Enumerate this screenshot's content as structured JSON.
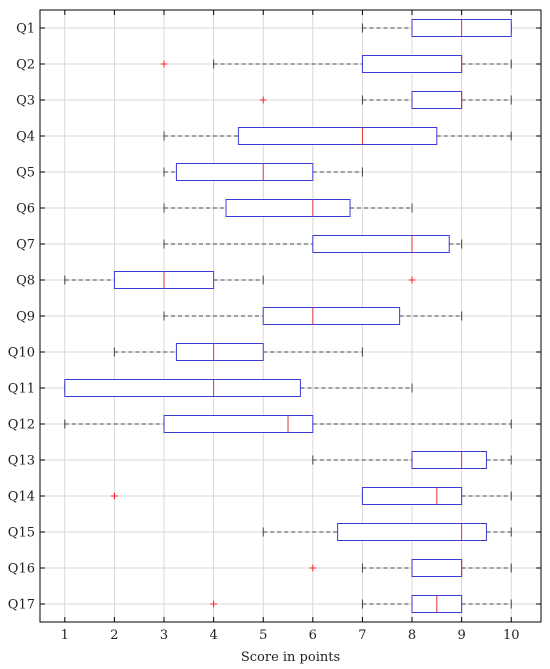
{
  "chart_data": {
    "type": "boxplot",
    "orientation": "horizontal",
    "xlabel": "Score in points",
    "ylabel": "",
    "xlim": [
      0.5,
      10.6
    ],
    "xticks": [
      1,
      2,
      3,
      4,
      5,
      6,
      7,
      8,
      9,
      10
    ],
    "grid": true,
    "colors": {
      "box": "#3b3bd6",
      "median": "#e03030",
      "whisker": "#444444",
      "outlier": "#ff2020",
      "grid": "#d9d9d9"
    },
    "categories": [
      "Q1",
      "Q2",
      "Q3",
      "Q4",
      "Q5",
      "Q6",
      "Q7",
      "Q8",
      "Q9",
      "Q10",
      "Q11",
      "Q12",
      "Q13",
      "Q14",
      "Q15",
      "Q16",
      "Q17"
    ],
    "boxes": [
      {
        "label": "Q1",
        "whislo": 7,
        "q1": 8,
        "med": 9,
        "q3": 10,
        "whishi": 10,
        "fliers": []
      },
      {
        "label": "Q2",
        "whislo": 4,
        "q1": 7,
        "med": 9,
        "q3": 9,
        "whishi": 10,
        "fliers": [
          3
        ]
      },
      {
        "label": "Q3",
        "whislo": 7,
        "q1": 8,
        "med": 9,
        "q3": 9,
        "whishi": 10,
        "fliers": [
          5
        ]
      },
      {
        "label": "Q4",
        "whislo": 3,
        "q1": 4.5,
        "med": 7,
        "q3": 8.5,
        "whishi": 10,
        "fliers": []
      },
      {
        "label": "Q5",
        "whislo": 3,
        "q1": 3.25,
        "med": 5,
        "q3": 6,
        "whishi": 7,
        "fliers": []
      },
      {
        "label": "Q6",
        "whislo": 3,
        "q1": 4.25,
        "med": 6,
        "q3": 6.75,
        "whishi": 8,
        "fliers": []
      },
      {
        "label": "Q7",
        "whislo": 3,
        "q1": 6,
        "med": 8,
        "q3": 8.75,
        "whishi": 9,
        "fliers": []
      },
      {
        "label": "Q8",
        "whislo": 1,
        "q1": 2,
        "med": 3,
        "q3": 4,
        "whishi": 5,
        "fliers": [
          8
        ]
      },
      {
        "label": "Q9",
        "whislo": 3,
        "q1": 5,
        "med": 6,
        "q3": 7.75,
        "whishi": 9,
        "fliers": []
      },
      {
        "label": "Q10",
        "whislo": 2,
        "q1": 3.25,
        "med": 4,
        "q3": 5,
        "whishi": 7,
        "fliers": []
      },
      {
        "label": "Q11",
        "whislo": 1,
        "q1": 1,
        "med": 4,
        "q3": 5.75,
        "whishi": 8,
        "fliers": []
      },
      {
        "label": "Q12",
        "whislo": 1,
        "q1": 3,
        "med": 5.5,
        "q3": 6,
        "whishi": 10,
        "fliers": []
      },
      {
        "label": "Q13",
        "whislo": 6,
        "q1": 8,
        "med": 9,
        "q3": 9.5,
        "whishi": 10,
        "fliers": []
      },
      {
        "label": "Q14",
        "whislo": 7,
        "q1": 7,
        "med": 8.5,
        "q3": 9,
        "whishi": 10,
        "fliers": [
          2
        ]
      },
      {
        "label": "Q15",
        "whislo": 5,
        "q1": 6.5,
        "med": 9,
        "q3": 9.5,
        "whishi": 10,
        "fliers": []
      },
      {
        "label": "Q16",
        "whislo": 7,
        "q1": 8,
        "med": 9,
        "q3": 9,
        "whishi": 10,
        "fliers": [
          6
        ]
      },
      {
        "label": "Q17",
        "whislo": 7,
        "q1": 8,
        "med": 8.5,
        "q3": 9,
        "whishi": 10,
        "fliers": [
          4
        ]
      }
    ]
  }
}
